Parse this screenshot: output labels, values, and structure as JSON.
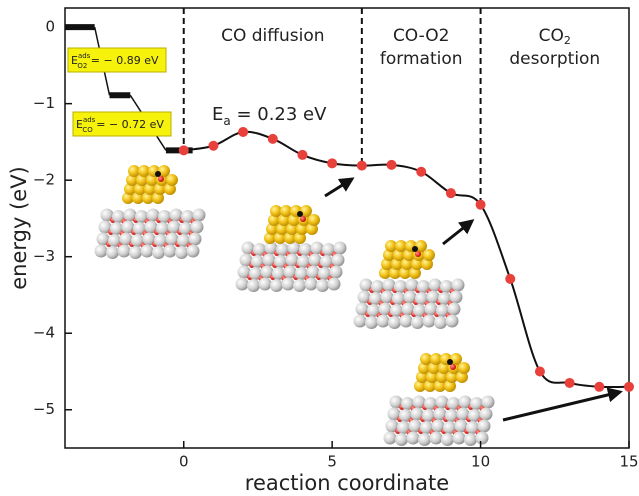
{
  "chart_data": {
    "type": "line",
    "x_label": "reaction coordinate",
    "y_label": "energy (eV)",
    "xlim": [
      -4,
      15
    ],
    "ylim": [
      -5.5,
      0.25
    ],
    "xticks": [
      0,
      5,
      10,
      15
    ],
    "yticks": [
      0,
      {
        "value": -1,
        "label": "−1"
      },
      {
        "value": -2,
        "label": "−2"
      },
      {
        "value": -3,
        "label": "−3"
      },
      {
        "value": -4,
        "label": "−4"
      },
      {
        "value": -5,
        "label": "−5"
      }
    ],
    "x": [
      0,
      1,
      2,
      3,
      4,
      5,
      6,
      7,
      8,
      9,
      10,
      11,
      12,
      13,
      14,
      15
    ],
    "values": [
      -1.61,
      -1.55,
      -1.37,
      -1.46,
      -1.67,
      -1.78,
      -1.81,
      -1.8,
      -1.89,
      -2.17,
      -2.32,
      -3.29,
      -4.5,
      -4.65,
      -4.7,
      -4.7
    ],
    "color": "#e8403a",
    "steps": [
      {
        "x": [
          -4,
          -3
        ],
        "value": 0
      },
      {
        "x": [
          -2.5,
          -1.8
        ],
        "value": -0.89
      },
      {
        "x": [
          -0.6,
          0.3
        ],
        "value": -1.61
      }
    ],
    "dividers": [
      0,
      6,
      10
    ],
    "regions": [
      {
        "x": 3,
        "lines": [
          {
            "text": "CO diffusion"
          }
        ]
      },
      {
        "x": 8,
        "lines": [
          {
            "text": "CO-O2"
          },
          {
            "text": "formation"
          }
        ]
      },
      {
        "x": 12.5,
        "lines": [
          {
            "text": "CO",
            "sub": "2"
          },
          {
            "text": "desorption"
          }
        ]
      }
    ],
    "activation": {
      "symbol": "E",
      "sub": "a",
      "rest": " = 0.23 eV"
    },
    "adsorption": [
      {
        "symbol": "E",
        "sup": "ads",
        "sub": "O2",
        "rest": " = − 0.89 eV"
      },
      {
        "symbol": "E",
        "sup": "ads",
        "sub": "CO",
        "rest": " = − 0.72 eV"
      }
    ]
  }
}
